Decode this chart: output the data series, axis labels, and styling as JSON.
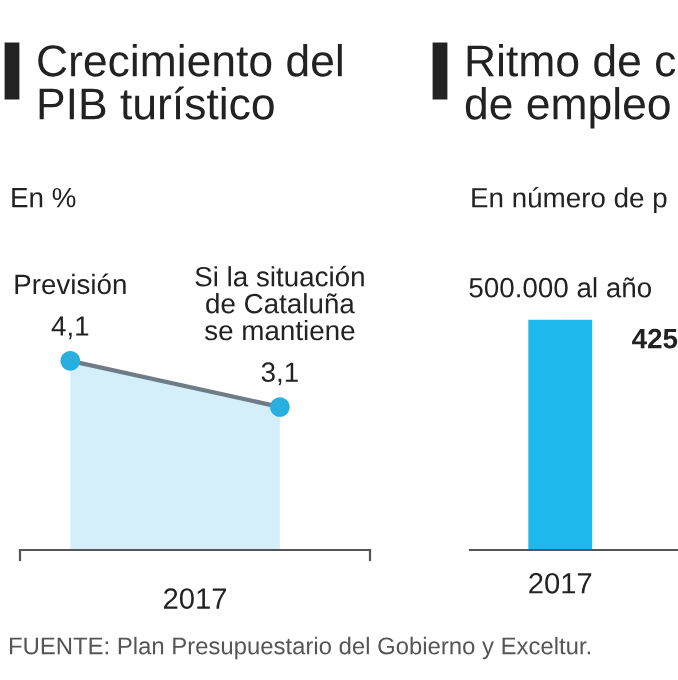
{
  "chart_data": [
    {
      "type": "area",
      "title": "Crecimiento del\nPIB turístico",
      "subtitle": "En %",
      "xlabel": "2017",
      "categories": [
        null,
        null
      ],
      "series": [
        {
          "color": "#6d7c86",
          "colors": [
            "#29aee0",
            "#29aee0"
          ],
          "values": [
            4.1,
            3.1
          ],
          "value_labels": [
            "4,1",
            "3,1"
          ]
        }
      ],
      "marker": "circle",
      "grid": false,
      "legend": false,
      "annotations": [
        "Previsión",
        "Si la situación\nde Cataluña\nse mantiene",
        "FUENTE: Plan Presupuestario del Gobierno y Exceltur."
      ]
    },
    {
      "type": "bar",
      "title": "Ritmo de c\nde empleo",
      "subtitle": "En número de p",
      "categories": [
        "2017"
      ],
      "series": [
        {
          "color": "#1fb8ec",
          "values": [
            500000
          ],
          "value_labels": [
            "500.000 al año"
          ]
        }
      ],
      "grid": false,
      "legend": false,
      "annotations": [
        "425"
      ]
    }
  ]
}
